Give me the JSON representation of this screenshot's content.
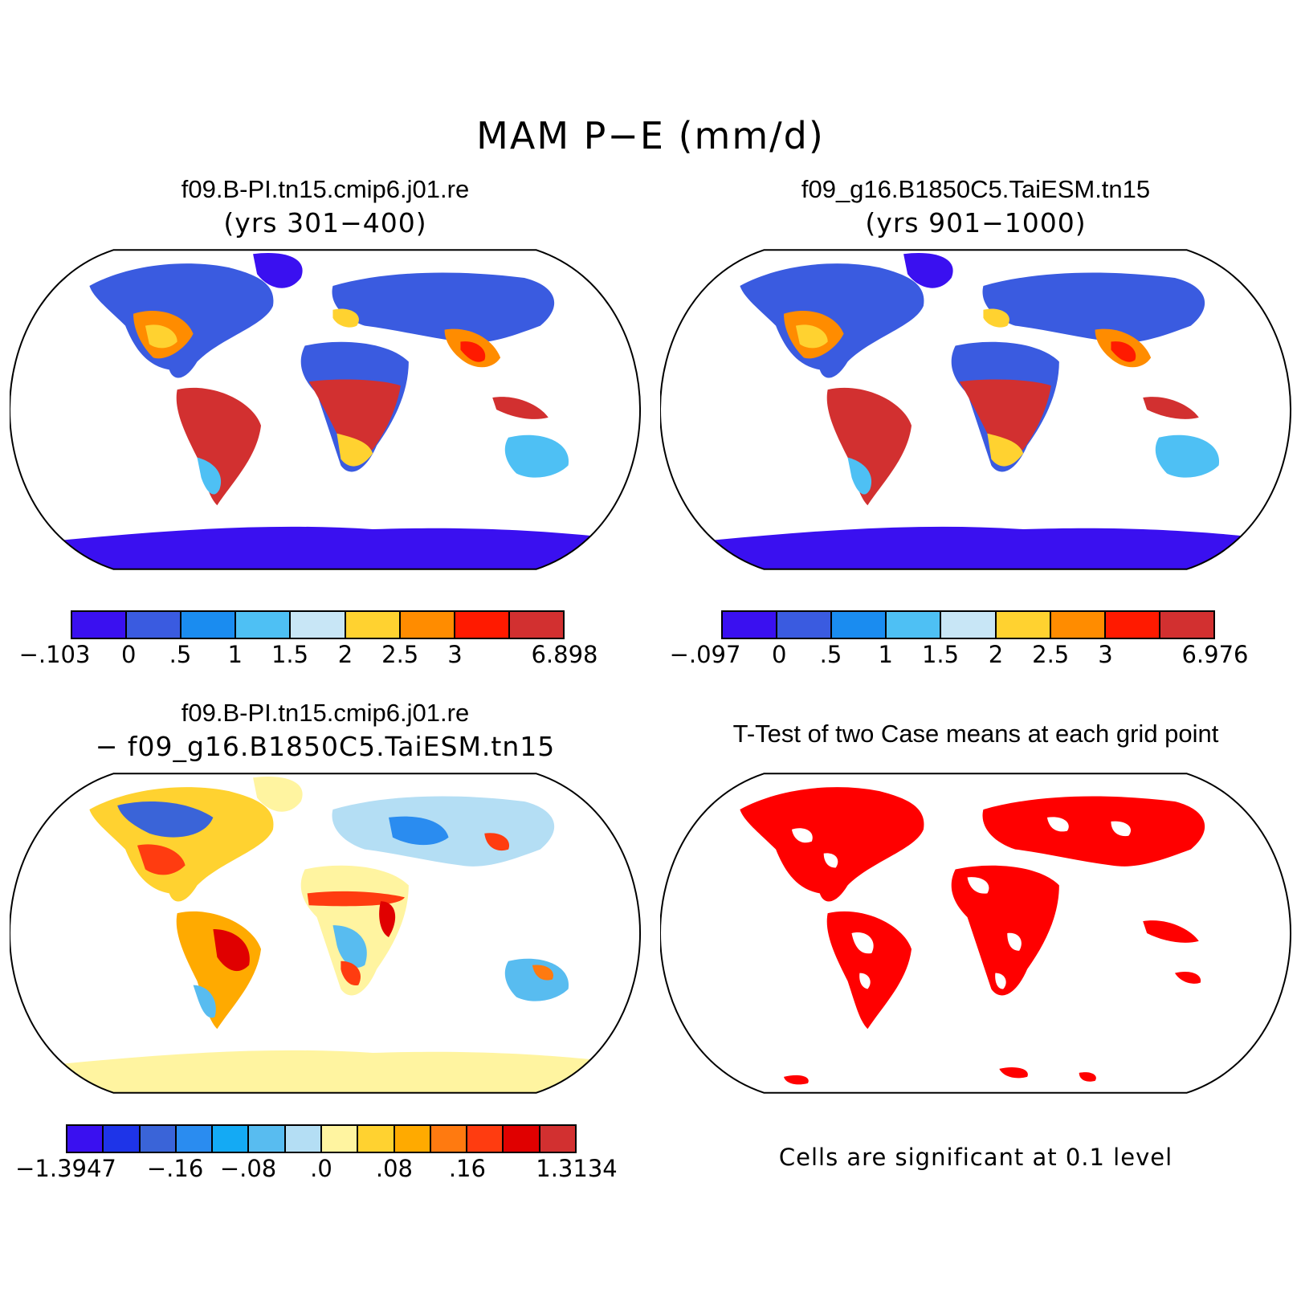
{
  "figure": {
    "title": "MAM P−E (mm/d)"
  },
  "panels": {
    "case1": {
      "title": "f09.B-PI.tn15.cmip6.j01.re",
      "subtitle": "(yrs 301−400)"
    },
    "case2": {
      "title": "f09_g16.B1850C5.TaiESM.tn15",
      "subtitle": "(yrs 901−1000)"
    },
    "diff": {
      "title": "f09.B-PI.tn15.cmip6.j01.re",
      "subtitle": "− f09_g16.B1850C5.TaiESM.tn15"
    },
    "ttest": {
      "title": "T-Test of two Case means at each grid point",
      "note": "Cells are significant at 0.1 level"
    }
  },
  "colorbars": {
    "abs_colors": [
      "#3a10f0",
      "#3a5be0",
      "#1a8cf0",
      "#4ec0f4",
      "#c8e6f6",
      "#ffd230",
      "#ff8c00",
      "#ff1a00",
      "#d23030"
    ],
    "case1_labels": [
      "−.103",
      "0",
      ".5",
      "1",
      "1.5",
      "2",
      "2.5",
      "3",
      "6.898"
    ],
    "case2_labels": [
      "−.097",
      "0",
      ".5",
      "1",
      "1.5",
      "2",
      "2.5",
      "3",
      "6.976"
    ],
    "diff_colors": [
      "#3a10f0",
      "#1e34e8",
      "#3a64d8",
      "#2a8cf0",
      "#14aaf4",
      "#58bcf0",
      "#b4def4",
      "#fff4a0",
      "#ffd230",
      "#ffaa00",
      "#ff7a10",
      "#ff3c10",
      "#e00000",
      "#d23030"
    ],
    "diff_labels": [
      "−1.3947",
      "−.16",
      "−.08",
      ".0",
      ".08",
      ".16",
      "1.3134"
    ]
  },
  "map_colors": {
    "significant": "#ff0000",
    "coastline": "#000000"
  }
}
